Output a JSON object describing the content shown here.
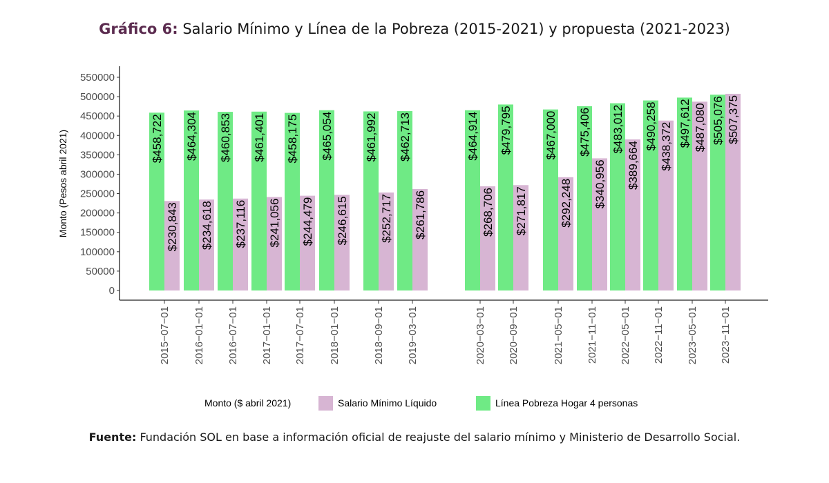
{
  "title": {
    "lead": "Gráfico 6:",
    "text": "Salario Mínimo y Línea de la Pobreza (2015-2021) y propuesta (2021-2023)"
  },
  "source": {
    "lead": "Fuente:",
    "text": "Fundación SOL en base a información oficial de reajuste del salario mínimo y Ministerio de Desarrollo Social."
  },
  "colors": {
    "salario": "#d7b5d3",
    "linea": "#6fea85",
    "value_green": "#1fb53c",
    "value_dark": "#111111"
  },
  "chart_data": {
    "type": "bar",
    "ylabel": "Monto (Pesos abril 2021)",
    "ylim": [
      0,
      560000
    ],
    "yticks": [
      0,
      50000,
      100000,
      150000,
      200000,
      250000,
      300000,
      350000,
      400000,
      450000,
      500000,
      550000
    ],
    "categories": [
      "2015−07−01",
      "2016−01−01",
      "2016−07−01",
      "2017−01−01",
      "2017−07−01",
      "2018−01−01",
      "2018−09−01",
      "2019−03−01",
      "2020−03−01",
      "2020−09−01",
      "2021−05−01",
      "2021−11−01",
      "2022−05−01",
      "2022−11−01",
      "2023−05−01",
      "2023−11−01"
    ],
    "series": [
      {
        "name": "Línea Pobreza Hogar 4 personas",
        "values": [
          458722,
          464304,
          460853,
          461401,
          458175,
          465054,
          461992,
          462713,
          464914,
          479795,
          467000,
          475406,
          483012,
          490258,
          497612,
          505076
        ],
        "labels": [
          "$458,722",
          "$464,304",
          "$460,853",
          "$461,401",
          "$458,175",
          "$465,054",
          "$461,992",
          "$462,713",
          "$464,914",
          "$479,795",
          "$467,000",
          "$475,406",
          "$483,012",
          "$490,258",
          "$497,612",
          "$505,076"
        ]
      },
      {
        "name": "Salario Mínimo Líquido",
        "values": [
          230843,
          234618,
          237116,
          241056,
          244479,
          246615,
          252717,
          261786,
          268706,
          271817,
          292248,
          340956,
          389664,
          438372,
          487080,
          507375
        ],
        "labels": [
          "$230,843",
          "$234,618",
          "$237,116",
          "$241,056",
          "$244,479",
          "$246,615",
          "$252,717",
          "$261,786",
          "$268,706",
          "$271,817",
          "$292,248",
          "$340,956",
          "$389,664",
          "$438,372",
          "$487,080",
          "$507,375"
        ]
      }
    ],
    "legend": {
      "title": "Monto ($ abril 2021)",
      "items": [
        "Salario Mínimo Líquido",
        "Línea Pobreza Hogar 4 personas"
      ],
      "position": "bottom"
    }
  }
}
